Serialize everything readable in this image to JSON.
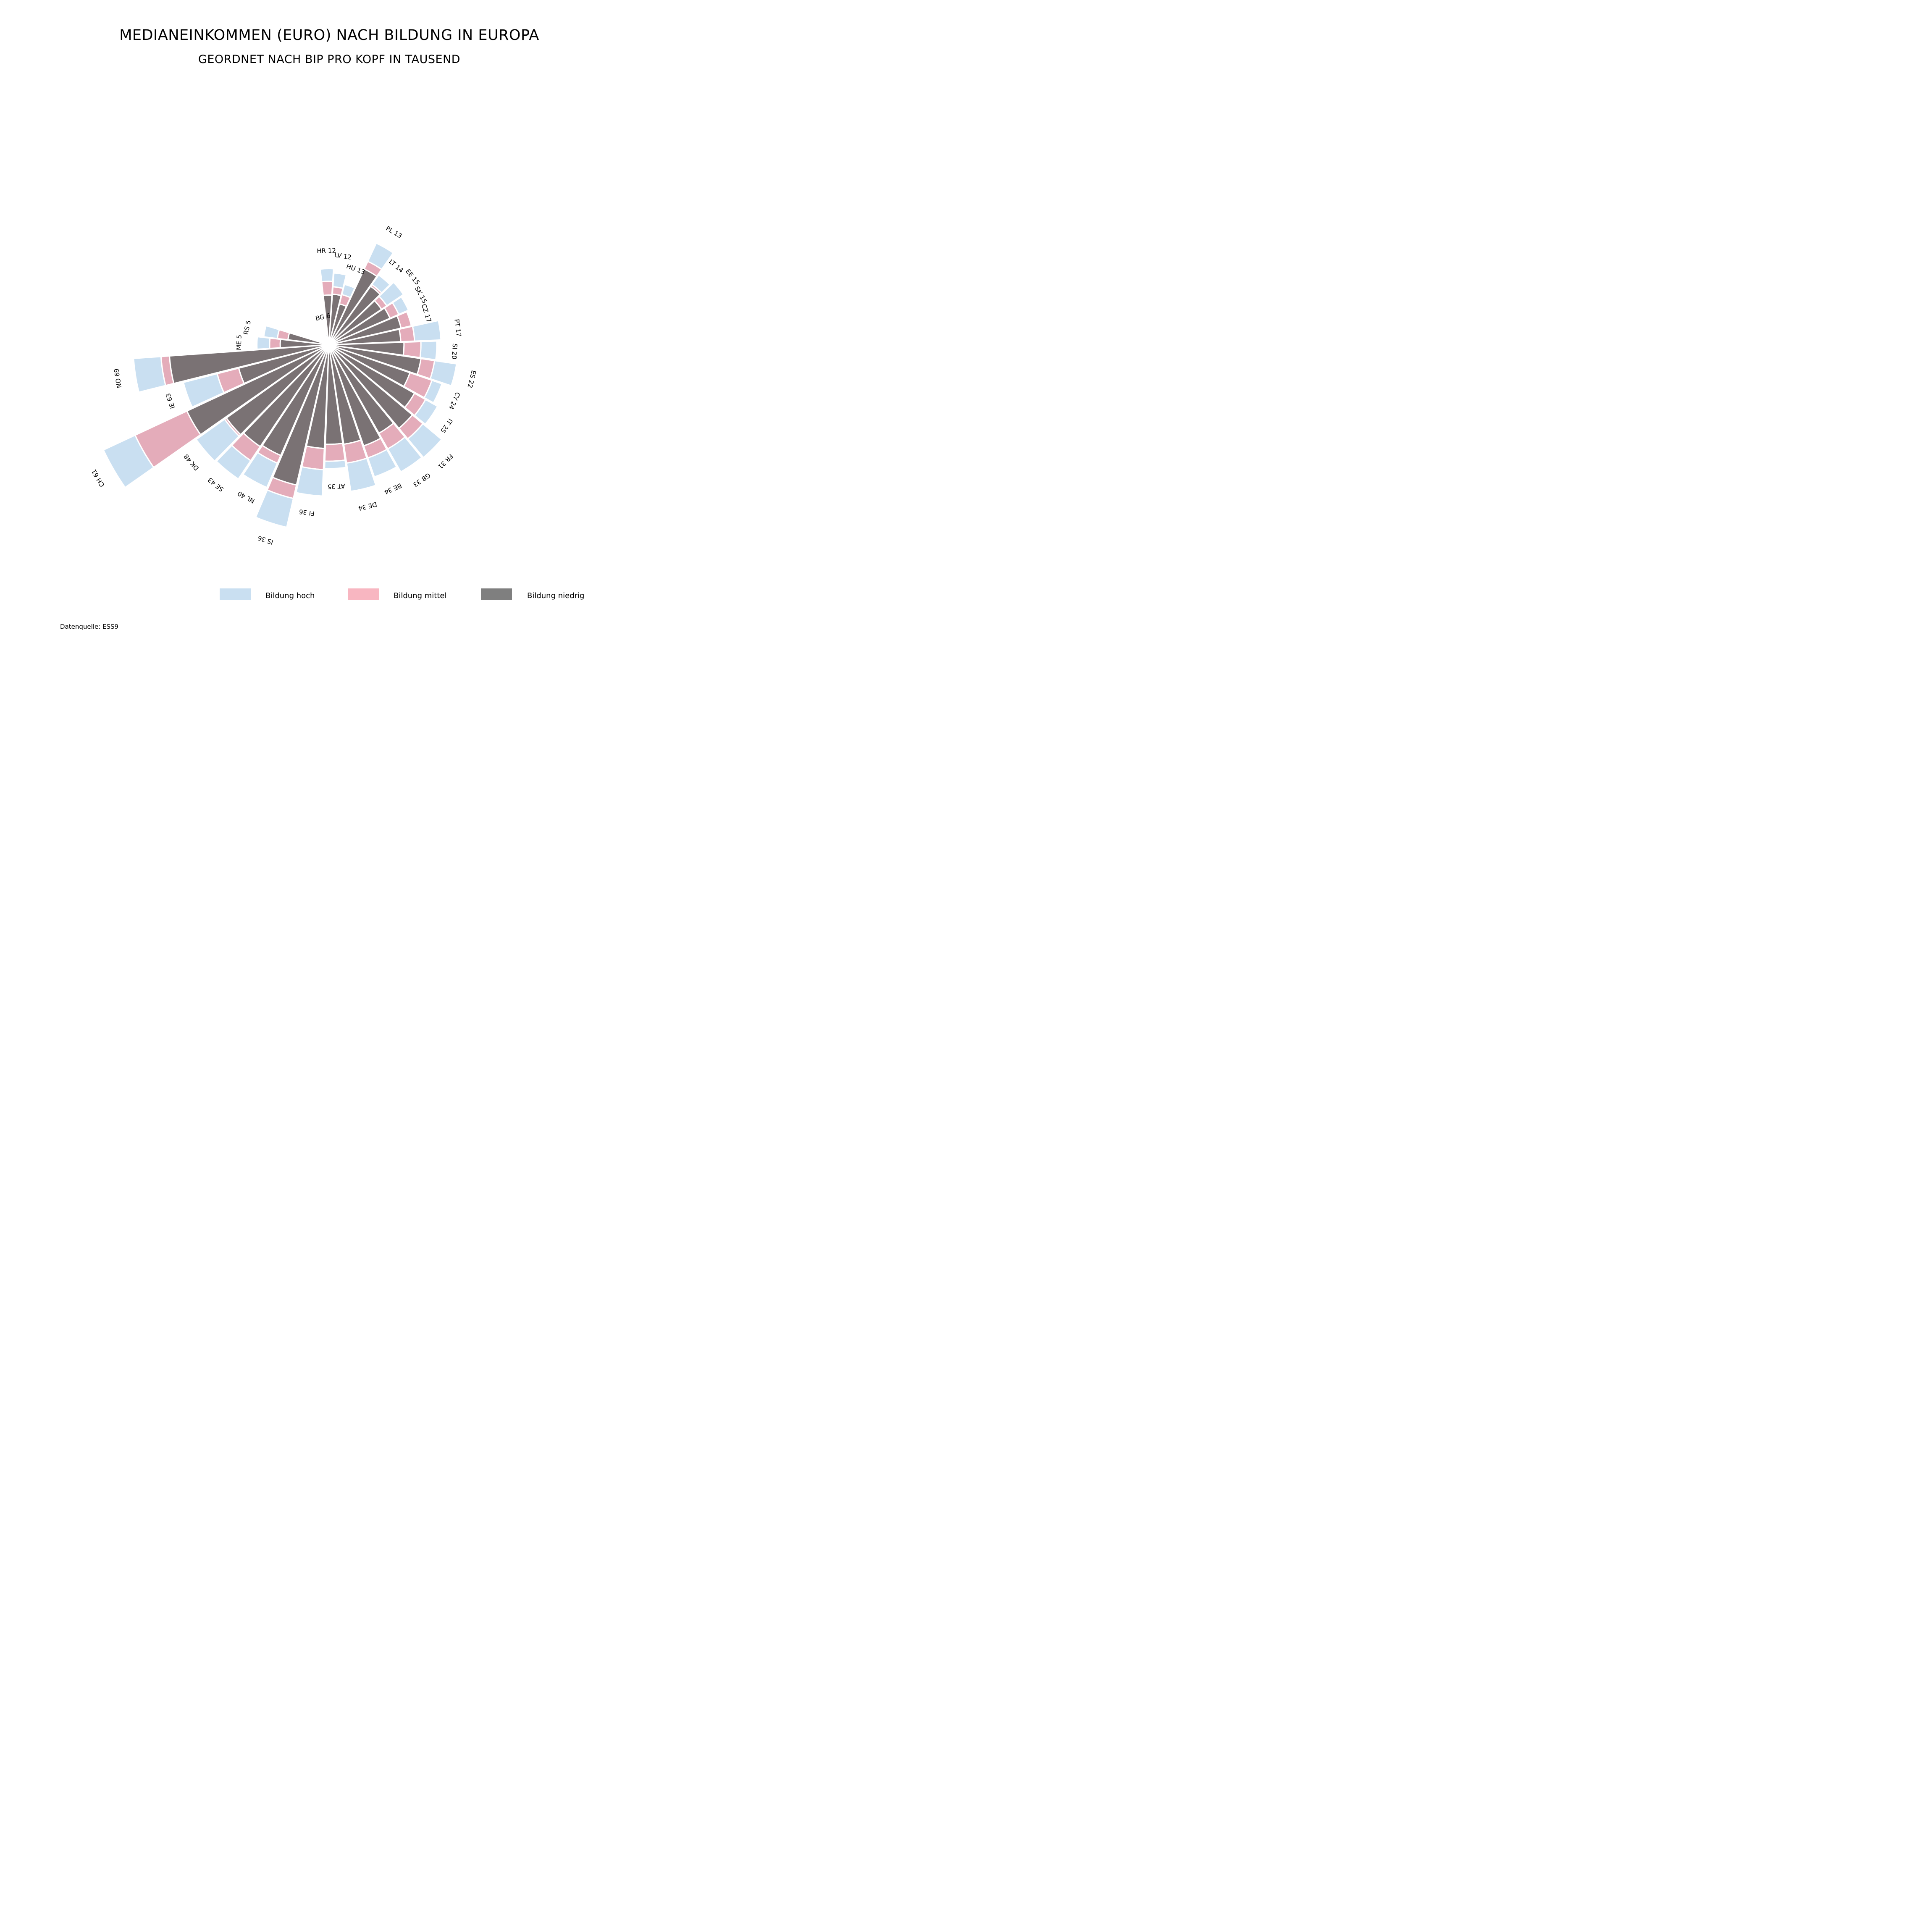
{
  "chart_data": {
    "type": "radial-stacked-bar",
    "title": "MEDIANEINKOMMEN (EURO) NACH BILDUNG IN EUROPA",
    "subtitle": "GEORDNET NACH BIP PRO KOPF IN TAUSEND",
    "source": "Datenquelle: ESS9",
    "series": [
      {
        "name": "Bildung niedrig",
        "color": "#7a7274"
      },
      {
        "name": "Bildung mittel",
        "color": "#e4acba"
      },
      {
        "name": "Bildung hoch",
        "color": "#c9dff1"
      }
    ],
    "legend": [
      {
        "label": "Bildung hoch",
        "color": "#c9dff1"
      },
      {
        "label": "Bildung mittel",
        "color": "#f8b6c1"
      },
      {
        "label": "Bildung niedrig",
        "color": "#7f7f7f"
      }
    ],
    "categories": [
      {
        "label": "BG 6",
        "niedrig": 2,
        "mittel": 5,
        "hoch": 3
      },
      {
        "label": "HR 12",
        "niedrig": 47,
        "mittel": 13,
        "hoch": 12
      },
      {
        "label": "LV 12",
        "niedrig": 48,
        "mittel": 7,
        "hoch": 13
      },
      {
        "label": "HU 13",
        "niedrig": 40,
        "mittel": 9,
        "hoch": 10
      },
      {
        "label": "PL 13",
        "niedrig": 79,
        "mittel": 8,
        "hoch": 19
      },
      {
        "label": "LT 14",
        "niedrig": 68,
        "mittel": 2,
        "hoch": 11
      },
      {
        "label": "EE 15",
        "niedrig": 60,
        "mittel": 6,
        "hoch": 19
      },
      {
        "label": "SK 15",
        "niedrig": 63,
        "mittel": 9,
        "hoch": 10
      },
      {
        "label": "CZ 17",
        "niedrig": 70,
        "mittel": 10,
        "hoch": 0
      },
      {
        "label": "PT 17",
        "niedrig": 68,
        "mittel": 13,
        "hoch": 25
      },
      {
        "label": "SI 20",
        "niedrig": 71,
        "mittel": 16,
        "hoch": 15
      },
      {
        "label": "ES 22",
        "niedrig": 88,
        "mittel": 13,
        "hoch": 21
      },
      {
        "label": "CY 24",
        "niedrig": 81,
        "mittel": 22,
        "hoch": 10
      },
      {
        "label": "IT 25",
        "niedrig": 93,
        "mittel": 12,
        "hoch": 13
      },
      {
        "label": "FR 31",
        "niedrig": 103,
        "mittel": 13,
        "hoch": 23
      },
      {
        "label": "GB 33",
        "niedrig": 96,
        "mittel": 17,
        "hoch": 25
      },
      {
        "label": "BE 34",
        "niedrig": 101,
        "mittel": 12,
        "hoch": 19
      },
      {
        "label": "DE 34",
        "niedrig": 95,
        "mittel": 18,
        "hoch": 27
      },
      {
        "label": "AT 35",
        "niedrig": 94,
        "mittel": 16,
        "hoch": 7
      },
      {
        "label": "FI 36",
        "niedrig": 98,
        "mittel": 20,
        "hoch": 25
      },
      {
        "label": "IS 36",
        "niedrig": 136,
        "mittel": 13,
        "hoch": 28
      },
      {
        "label": "NL 40",
        "niedrig": 114,
        "mittel": 8,
        "hoch": 25
      },
      {
        "label": "SE 43",
        "niedrig": 116,
        "mittel": 16,
        "hoch": 21
      },
      {
        "label": "DK 48",
        "niedrig": 119,
        "mittel": 2,
        "hoch": 33
      },
      {
        "label": "CH 61",
        "niedrig": 148,
        "mittel": 54,
        "hoch": 33
      },
      {
        "label": "IE 63",
        "niedrig": 88,
        "mittel": 21,
        "hoch": 33
      },
      {
        "label": "NO 69",
        "niedrig": 151,
        "mittel": 8,
        "hoch": 26
      },
      {
        "label": "ME 5",
        "niedrig": 46,
        "mittel": 10,
        "hoch": 12
      },
      {
        "label": "RS 5",
        "niedrig": 39,
        "mittel": 10,
        "hoch": 13
      }
    ]
  }
}
